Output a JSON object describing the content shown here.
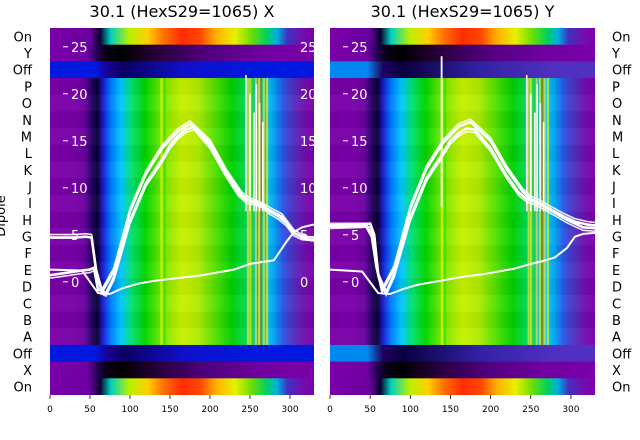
{
  "chart_data": [
    {
      "type": "heatmap",
      "title": "30.1 (HexS29=1065) X",
      "ylabel": "Dipole",
      "x_ticks": [
        0,
        50,
        100,
        150,
        200,
        250,
        300
      ],
      "xlim": [
        0,
        330
      ],
      "overlay_ticks": [
        "0",
        "5",
        "10",
        "15",
        "20",
        "25"
      ],
      "overlay_ylim": [
        -3,
        27
      ],
      "row_labels": [
        "On",
        "Y",
        "Off",
        "P",
        "O",
        "N",
        "M",
        "L",
        "K",
        "J",
        "I",
        "H",
        "G",
        "F",
        "E",
        "D",
        "C",
        "B",
        "A",
        "Off",
        "X",
        "On"
      ],
      "series": [
        {
          "x": [
            0,
            40,
            50,
            55,
            60,
            70,
            80,
            100,
            120,
            140,
            150,
            160,
            170,
            180,
            200,
            220,
            235,
            245,
            255,
            265,
            275,
            285,
            295,
            305,
            315,
            330
          ],
          "y": [
            0.7,
            1.2,
            1.3,
            1.5,
            -0.8,
            -1.2,
            0.5,
            6.5,
            10.5,
            13,
            14.5,
            15.5,
            16.2,
            16.5,
            14.5,
            11.5,
            9.5,
            8.7,
            8.5,
            8.2,
            7.5,
            7,
            6.3,
            5.2,
            4.8,
            4.7
          ]
        },
        {
          "x": [
            0,
            30,
            45,
            52,
            58,
            65,
            80,
            100,
            120,
            140,
            160,
            175,
            200,
            220,
            240,
            250,
            265,
            275,
            290,
            305,
            320,
            330
          ],
          "y": [
            4.7,
            4.7,
            4.8,
            4.7,
            1,
            -1.1,
            1.2,
            7.5,
            11.5,
            14.2,
            16,
            16.8,
            14.8,
            11.7,
            9.2,
            8.6,
            8.1,
            7.6,
            6.9,
            5.2,
            4.5,
            4.4
          ]
        },
        {
          "x": [
            0,
            40,
            60,
            75,
            90,
            110,
            130,
            150,
            170,
            190,
            210,
            230,
            250,
            265,
            280,
            295,
            305,
            315,
            330
          ],
          "y": [
            1.3,
            1.2,
            -1.2,
            -1.3,
            -0.7,
            -0.2,
            0.1,
            0.3,
            0.5,
            0.7,
            1,
            1.3,
            1.9,
            2.1,
            2.3,
            4.2,
            5.3,
            5.8,
            6.1
          ]
        }
      ]
    },
    {
      "type": "heatmap",
      "title": "30.1 (HexS29=1065) Y",
      "x_ticks": [
        0,
        50,
        100,
        150,
        200,
        250,
        300
      ],
      "xlim": [
        0,
        330
      ],
      "overlay_ticks": [
        "0",
        "5",
        "10",
        "15",
        "20",
        "25"
      ],
      "overlay_ylim": [
        -3,
        27
      ],
      "row_labels": [
        "On",
        "Y",
        "Off",
        "P",
        "O",
        "N",
        "M",
        "L",
        "K",
        "J",
        "I",
        "H",
        "G",
        "F",
        "E",
        "D",
        "C",
        "B",
        "A",
        "Off",
        "X",
        "On"
      ],
      "series": [
        {
          "x": [
            0,
            40,
            50,
            55,
            60,
            70,
            80,
            100,
            120,
            140,
            150,
            160,
            170,
            180,
            200,
            220,
            235,
            245,
            255,
            265,
            275,
            285,
            295,
            305,
            315,
            330
          ],
          "y": [
            6,
            6.1,
            6.2,
            5,
            0.8,
            -1.1,
            0.8,
            6.8,
            11,
            13.6,
            15,
            15.8,
            16.3,
            16.2,
            14.2,
            11.3,
            9.5,
            8.8,
            8.5,
            8.1,
            7.6,
            7.1,
            6.6,
            6.2,
            5.8,
            5.7
          ]
        },
        {
          "x": [
            0,
            30,
            45,
            52,
            58,
            65,
            80,
            100,
            120,
            140,
            160,
            175,
            200,
            220,
            240,
            250,
            265,
            275,
            290,
            305,
            320,
            330
          ],
          "y": [
            5.9,
            5.9,
            5.9,
            4.8,
            1.5,
            -1,
            1.4,
            7.8,
            12,
            14.7,
            16.5,
            17,
            15,
            12,
            9.6,
            8.8,
            8.2,
            7.7,
            7,
            6.4,
            6.1,
            6
          ]
        },
        {
          "x": [
            0,
            40,
            60,
            75,
            90,
            110,
            130,
            150,
            170,
            190,
            210,
            230,
            250,
            265,
            280,
            295,
            305,
            315,
            330
          ],
          "y": [
            1.3,
            1.1,
            -1.2,
            -1.3,
            -0.8,
            -0.3,
            0,
            0.3,
            0.6,
            0.8,
            1.1,
            1.4,
            1.9,
            2.2,
            2.6,
            3.6,
            4.8,
            5.1,
            5.2
          ]
        }
      ]
    }
  ],
  "colors": {
    "background": "#ffffff",
    "overlay_line": "#ffffff",
    "text": "#000000"
  }
}
